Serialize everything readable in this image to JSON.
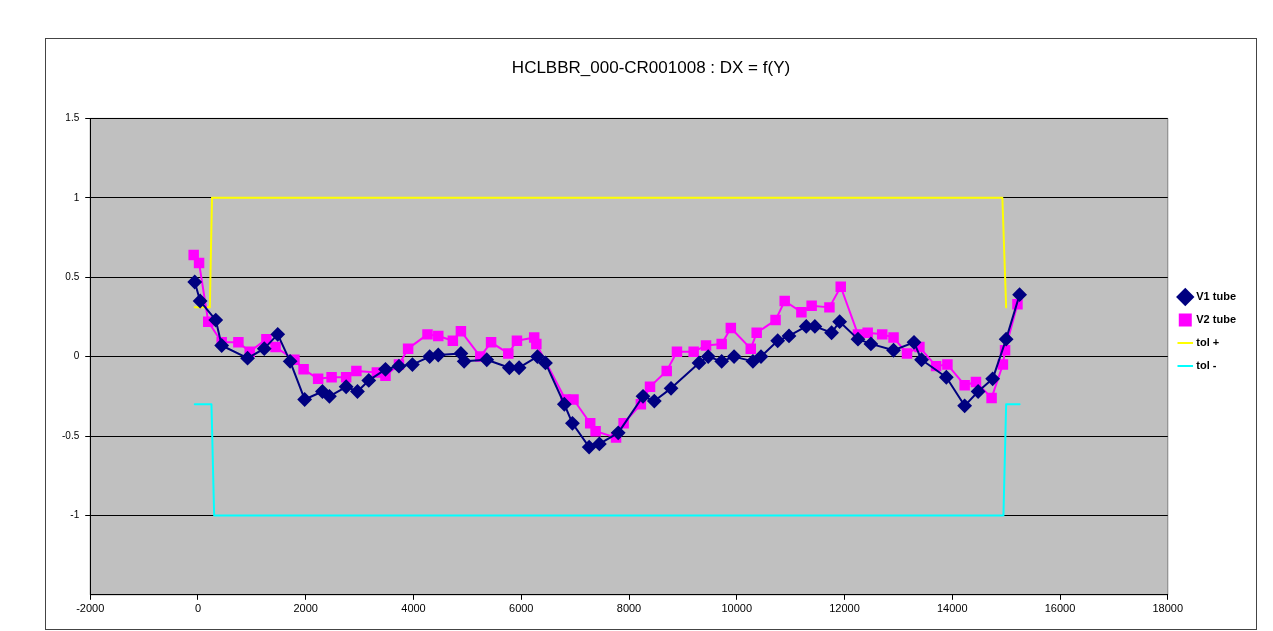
{
  "chart_data": {
    "type": "line",
    "title": "HCLBBR_000-CR001008 : DX = f(Y)",
    "xlim": [
      -2000,
      18000
    ],
    "xticks": [
      -2000,
      0,
      2000,
      4000,
      6000,
      8000,
      10000,
      12000,
      14000,
      16000,
      18000
    ],
    "ylim": [
      -1.5,
      1.5
    ],
    "yticks": [
      1.5,
      1,
      0.5,
      0,
      -0.5,
      -1
    ],
    "grid": "y",
    "legend": "right",
    "line_style": "solid",
    "series": [
      {
        "name": "V1 tube",
        "color": "#000080",
        "marker": "diamond",
        "x": [
          -60,
          40,
          330,
          440,
          920,
          1230,
          1480,
          1710,
          1980,
          2310,
          2440,
          2750,
          2960,
          3170,
          3480,
          3730,
          3980,
          4300,
          4460,
          4880,
          4940,
          5360,
          5780,
          5960,
          6300,
          6450,
          6800,
          6950,
          7260,
          7450,
          7800,
          8260,
          8470,
          8780,
          9300,
          9470,
          9720,
          9950,
          10300,
          10450,
          10760,
          10970,
          11290,
          11450,
          11760,
          11910,
          12250,
          12490,
          12910,
          13290,
          13430,
          13890,
          14230,
          14480,
          14750,
          15000,
          15250
        ],
        "values": [
          0.47,
          0.35,
          0.23,
          0.07,
          -0.01,
          0.05,
          0.14,
          -0.03,
          -0.27,
          -0.22,
          -0.25,
          -0.19,
          -0.22,
          -0.15,
          -0.08,
          -0.06,
          -0.05,
          0.0,
          0.01,
          0.02,
          -0.03,
          -0.02,
          -0.07,
          -0.07,
          0.0,
          -0.04,
          -0.3,
          -0.42,
          -0.57,
          -0.55,
          -0.48,
          -0.25,
          -0.28,
          -0.2,
          -0.04,
          0.0,
          -0.03,
          0.0,
          -0.03,
          0.0,
          0.1,
          0.13,
          0.19,
          0.19,
          0.15,
          0.22,
          0.11,
          0.08,
          0.04,
          0.09,
          -0.02,
          -0.13,
          -0.31,
          -0.22,
          -0.14,
          0.11,
          0.39
        ]
      },
      {
        "name": "V2 tube",
        "color": "#ff00ff",
        "marker": "square",
        "x": [
          -80,
          20,
          190,
          440,
          750,
          960,
          1270,
          1440,
          1790,
          1960,
          2230,
          2480,
          2750,
          2940,
          3320,
          3480,
          3730,
          3900,
          4260,
          4460,
          4730,
          4880,
          5240,
          5440,
          5760,
          5920,
          6240,
          6280,
          6820,
          6970,
          7280,
          7380,
          7760,
          7900,
          8220,
          8390,
          8700,
          8890,
          9200,
          9430,
          9720,
          9890,
          10260,
          10370,
          10720,
          10890,
          11200,
          11390,
          11720,
          11930,
          12250,
          12430,
          12700,
          12910,
          13160,
          13390,
          13700,
          13910,
          14230,
          14440,
          14730,
          14940,
          14980,
          15210
        ],
        "values": [
          0.64,
          0.59,
          0.22,
          0.09,
          0.09,
          0.03,
          0.11,
          0.06,
          -0.02,
          -0.08,
          -0.14,
          -0.13,
          -0.13,
          -0.09,
          -0.1,
          -0.12,
          -0.05,
          0.05,
          0.14,
          0.13,
          0.1,
          0.16,
          0.0,
          0.09,
          0.02,
          0.1,
          0.12,
          0.08,
          -0.27,
          -0.27,
          -0.42,
          -0.47,
          -0.51,
          -0.42,
          -0.3,
          -0.19,
          -0.09,
          0.03,
          0.03,
          0.07,
          0.08,
          0.18,
          0.05,
          0.15,
          0.23,
          0.35,
          0.28,
          0.32,
          0.31,
          0.44,
          0.14,
          0.15,
          0.14,
          0.12,
          0.02,
          0.06,
          -0.06,
          -0.05,
          -0.18,
          -0.16,
          -0.26,
          -0.05,
          0.04,
          0.33
        ]
      },
      {
        "name": "tol +",
        "color": "#ffff00",
        "marker": "none",
        "x": [
          -60,
          220,
          260,
          14930,
          15000
        ],
        "values": [
          0.31,
          0.31,
          1,
          1,
          0.31
        ]
      },
      {
        "name": "tol -",
        "color": "#00ffff",
        "marker": "none",
        "x": [
          -60,
          250,
          300,
          14950,
          15000,
          15250
        ],
        "values": [
          -0.3,
          -0.3,
          -1,
          -1,
          -0.3,
          -0.3
        ]
      }
    ]
  }
}
